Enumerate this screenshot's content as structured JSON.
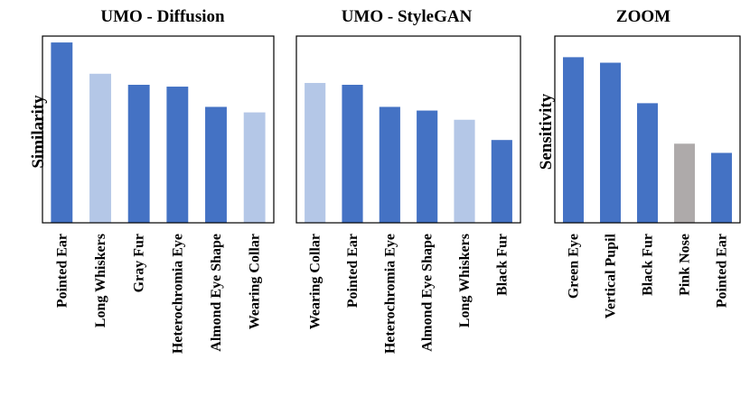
{
  "colors": {
    "dark": "#4472c4",
    "light": "#b4c7e7",
    "gray": "#aeaaaa"
  },
  "chart_data": [
    {
      "type": "bar",
      "title": "UMO - Diffusion",
      "ylabel": "Similarity",
      "ylim": [
        0,
        1
      ],
      "categories": [
        "Pointed Ear",
        "Long Whiskers",
        "Gray Fur",
        "Heterochromia Eye",
        "Almond Eye Shape",
        "Wearing Collar"
      ],
      "values": [
        0.98,
        0.81,
        0.75,
        0.74,
        0.63,
        0.6
      ],
      "bar_colors": [
        "dark",
        "light",
        "dark",
        "dark",
        "dark",
        "light"
      ],
      "grid": false,
      "legend": "none"
    },
    {
      "type": "bar",
      "title": "UMO - StyleGAN",
      "ylabel": "",
      "ylim": [
        0,
        1
      ],
      "categories": [
        "Wearing Collar",
        "Pointed Ear",
        "Heterochromia Eye",
        "Almond Eye Shape",
        "Long Whiskers",
        "Black Fur"
      ],
      "values": [
        0.76,
        0.75,
        0.63,
        0.61,
        0.56,
        0.45
      ],
      "bar_colors": [
        "light",
        "dark",
        "dark",
        "dark",
        "light",
        "dark"
      ],
      "grid": false,
      "legend": "none"
    },
    {
      "type": "bar",
      "title": "ZOOM",
      "ylabel": "Sensitivity",
      "ylim": [
        0,
        1
      ],
      "categories": [
        "Green Eye",
        "Vertical Pupil",
        "Black Fur",
        "Pink Nose",
        "Pointed Ear"
      ],
      "values": [
        0.9,
        0.87,
        0.65,
        0.43,
        0.38
      ],
      "bar_colors": [
        "dark",
        "dark",
        "dark",
        "gray",
        "dark"
      ],
      "grid": false,
      "legend": "none"
    }
  ]
}
